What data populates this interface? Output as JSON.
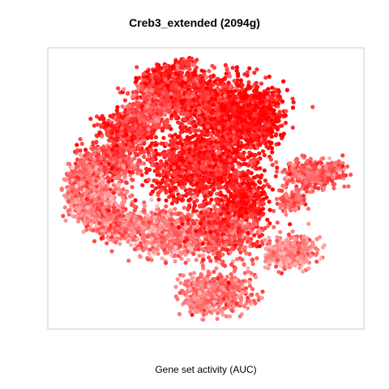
{
  "chart_data": {
    "type": "scatter",
    "title": "Creb3_extended (2094g)",
    "xlabel": "Gene set activity (AUC)",
    "ylabel": "",
    "x_ticks": [],
    "y_ticks": [],
    "grid": false,
    "legend": "none",
    "colors": {
      "high": "#ff0000",
      "mid": "#ff4d4d",
      "low": "#ffc4c4",
      "frame": "#cccccc"
    },
    "point_count_estimate": 9000,
    "clusters": [
      {
        "name": "upper-central",
        "activity": "high"
      },
      {
        "name": "central",
        "activity": "high"
      },
      {
        "name": "left-lower",
        "activity": "low"
      },
      {
        "name": "right-arm",
        "activity": "medium"
      },
      {
        "name": "right-lower",
        "activity": "low"
      },
      {
        "name": "bottom-lobe",
        "activity": "medium"
      }
    ]
  }
}
